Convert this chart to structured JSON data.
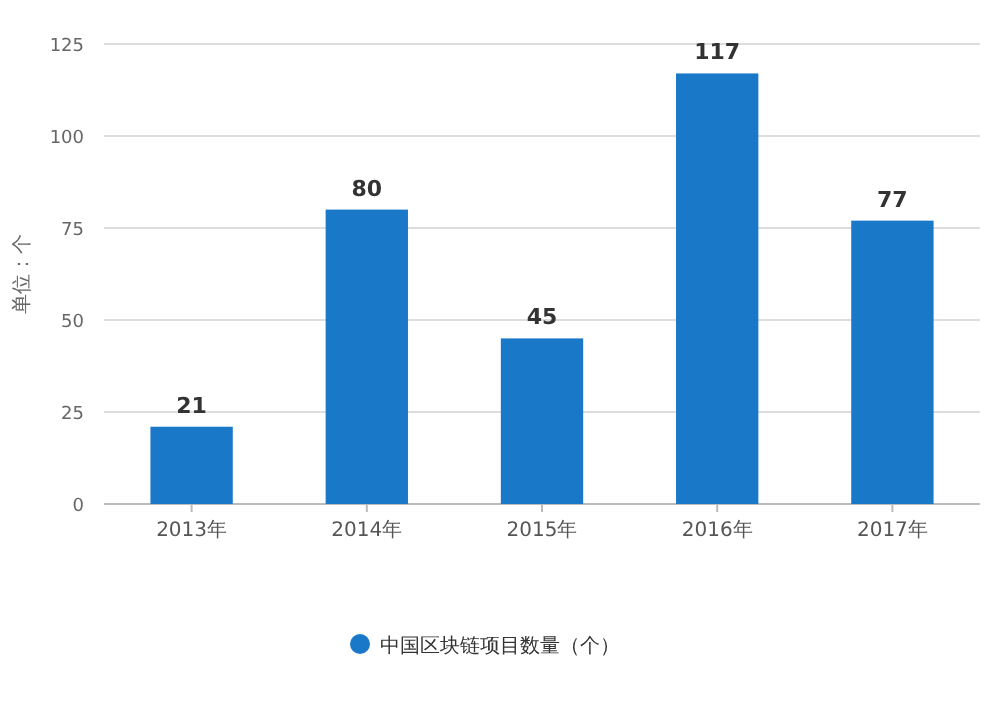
{
  "chart_data": {
    "type": "bar",
    "ylabel": "单位：个",
    "categories": [
      "2013年",
      "2014年",
      "2015年",
      "2016年",
      "2017年"
    ],
    "series": [
      {
        "name": "中国区块链项目数量（个）",
        "color": "#1a78c9",
        "values": [
          21,
          80,
          45,
          117,
          77
        ]
      }
    ],
    "ylim": [
      0,
      125
    ],
    "yticks": [
      0,
      25,
      50,
      75,
      100,
      125
    ],
    "grid": "y",
    "legend": "bottom",
    "data_labels": true
  }
}
